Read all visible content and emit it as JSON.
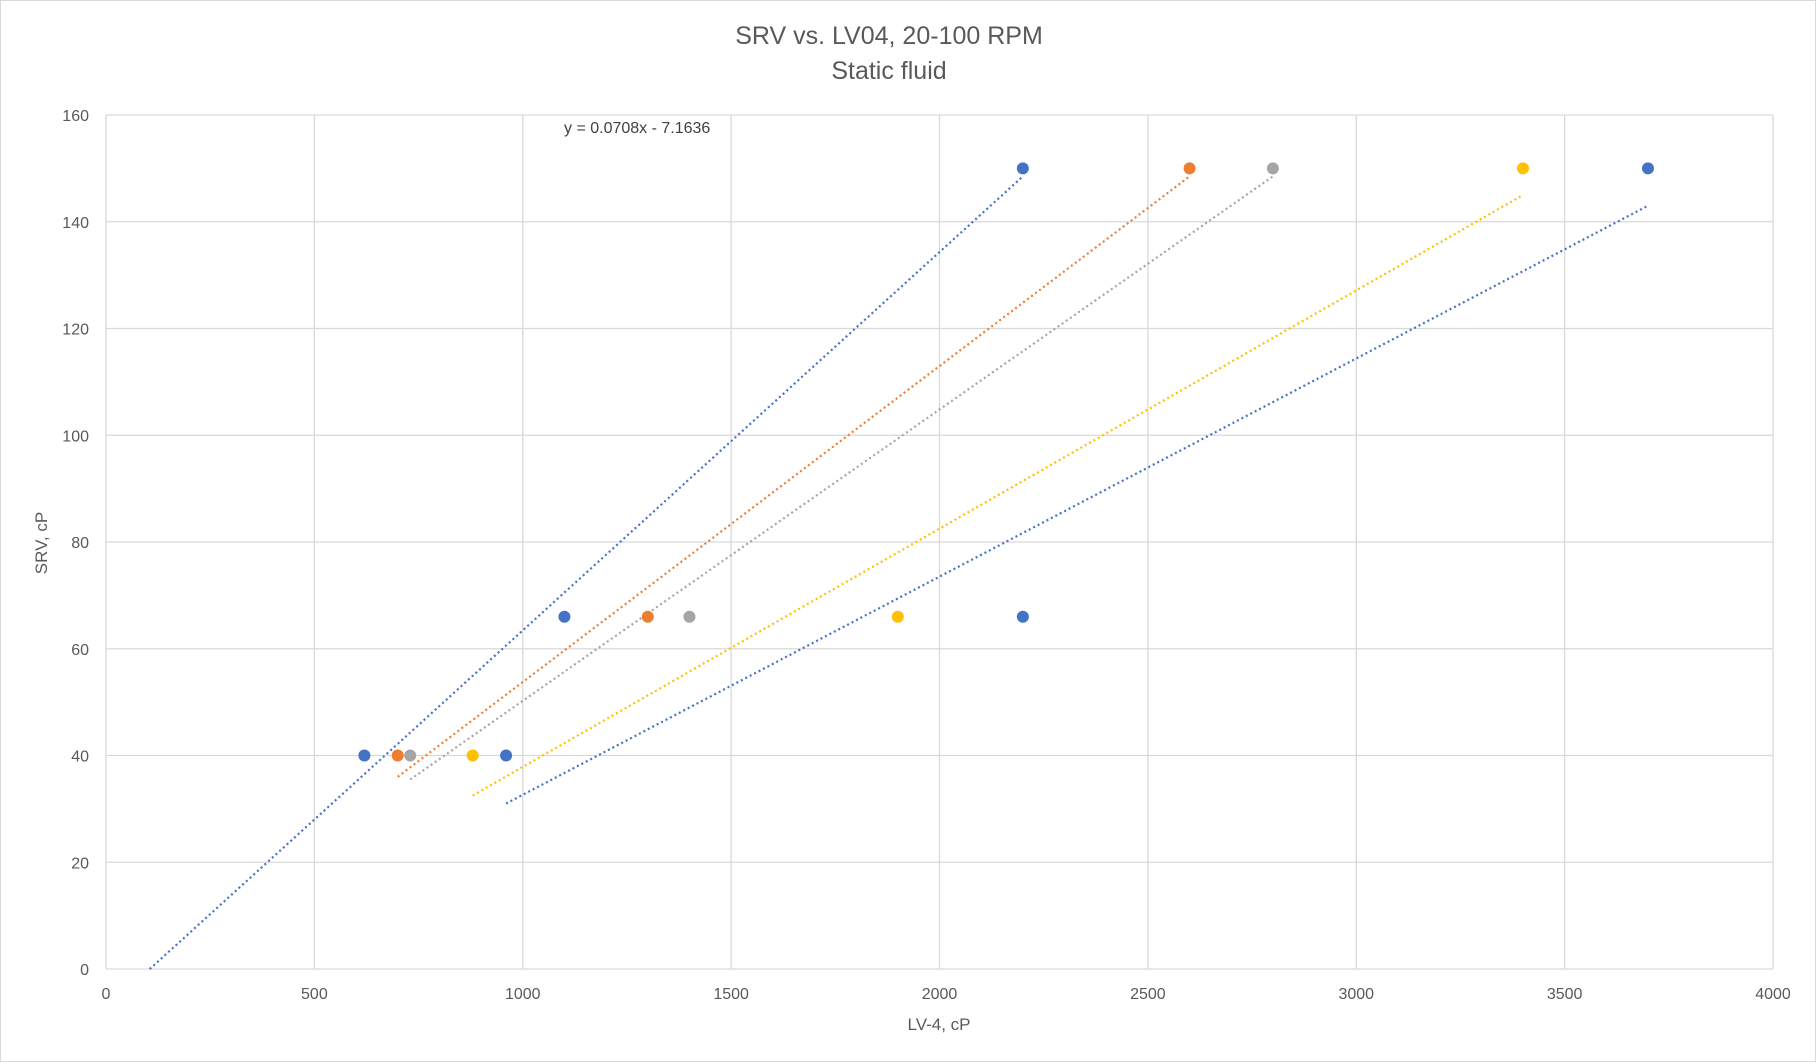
{
  "chart_data": {
    "type": "scatter",
    "title": "SRV vs. LV04, 20-100 RPM",
    "subtitle": "Static fluid",
    "xlabel": "LV-4, cP",
    "ylabel": "SRV, cP",
    "xlim": [
      0,
      4000
    ],
    "ylim": [
      0,
      160
    ],
    "x_ticks": [
      "0",
      "500",
      "1000",
      "1500",
      "2000",
      "2500",
      "3000",
      "3500",
      "4000"
    ],
    "y_ticks": [
      "0",
      "20",
      "40",
      "60",
      "80",
      "100",
      "120",
      "140",
      "160"
    ],
    "grid": true,
    "legend": "none",
    "annotation": "y = 0.0708x - 7.1636",
    "series": [
      {
        "color": "#4472c4",
        "points": [
          {
            "x": 620,
            "y": 40
          },
          {
            "x": 1100,
            "y": 66
          },
          {
            "x": 2200,
            "y": 150
          }
        ],
        "trendline": {
          "x_start": 105,
          "y_start": 0,
          "x_end": 2200,
          "y_end": 148.5
        }
      },
      {
        "color": "#ed7d31",
        "points": [
          {
            "x": 700,
            "y": 40
          },
          {
            "x": 1300,
            "y": 66
          },
          {
            "x": 2600,
            "y": 150
          }
        ],
        "trendline": {
          "x_start": 700,
          "y_start": 36,
          "x_end": 2600,
          "y_end": 148.5
        }
      },
      {
        "color": "#a5a5a5",
        "points": [
          {
            "x": 730,
            "y": 40
          },
          {
            "x": 1400,
            "y": 66
          },
          {
            "x": 2800,
            "y": 150
          }
        ],
        "trendline": {
          "x_start": 730,
          "y_start": 35.5,
          "x_end": 2800,
          "y_end": 148.5
        }
      },
      {
        "color": "#ffc000",
        "points": [
          {
            "x": 880,
            "y": 40
          },
          {
            "x": 1900,
            "y": 66
          },
          {
            "x": 3400,
            "y": 150
          }
        ],
        "trendline": {
          "x_start": 880,
          "y_start": 32.5,
          "x_end": 3400,
          "y_end": 145
        }
      },
      {
        "color": "#4472c4",
        "points": [
          {
            "x": 960,
            "y": 40
          },
          {
            "x": 2200,
            "y": 66
          },
          {
            "x": 3700,
            "y": 150
          }
        ],
        "trendline": {
          "x_start": 960,
          "y_start": 31,
          "x_end": 3700,
          "y_end": 143
        }
      }
    ]
  }
}
